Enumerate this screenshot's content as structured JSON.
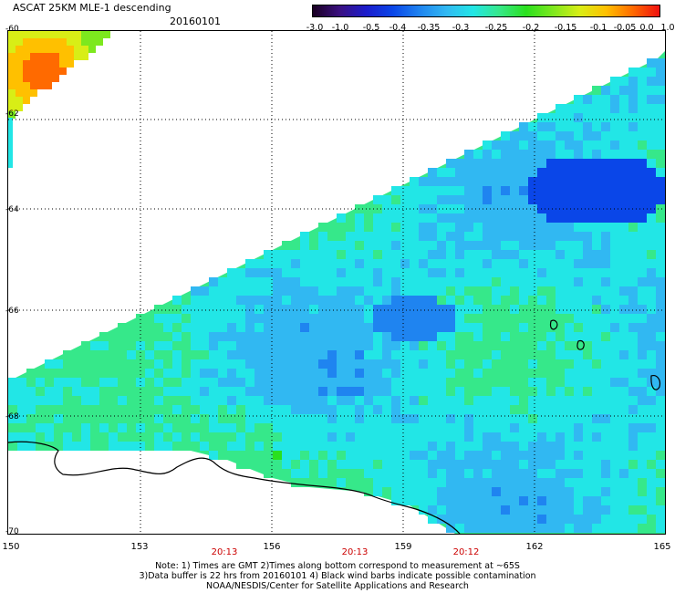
{
  "header": {
    "title": "ASCAT 25KM MLE-1 descending",
    "date": "20160101"
  },
  "colorbar": {
    "labels": [
      "-3.0",
      "-1.0",
      "-0.5",
      "-0.4",
      "-0.35",
      "-0.3",
      "-0.25",
      "-0.2",
      "-0.15",
      "-0.1",
      "-0.05",
      "0.0",
      "1.0"
    ],
    "colors": [
      "#1a0022",
      "#3a1080",
      "#1c1ccc",
      "#0a46e8",
      "#1f84f0",
      "#31b8f2",
      "#22e6e6",
      "#36e88a",
      "#2ae01e",
      "#7de81e",
      "#d8ee16",
      "#ffc000",
      "#ff6a00",
      "#f01010"
    ]
  },
  "axes": {
    "y_labels": [
      "-60",
      "-62",
      "-64",
      "-66",
      "-68",
      "-70"
    ],
    "x_labels": [
      "150",
      "153",
      "156",
      "159",
      "162",
      "165"
    ],
    "time_labels": [
      "20:13",
      "20:13",
      "20:12"
    ]
  },
  "note": {
    "line1": "Note: 1) Times are GMT 2)Times along bottom correspond to measurement at ~65S",
    "line2": "3)Data buffer is 22 hrs from 20160101 4) Black wind barbs indicate possible contamination",
    "line3": "NOAA/NESDIS/Center for Satellite Applications and Research"
  }
}
